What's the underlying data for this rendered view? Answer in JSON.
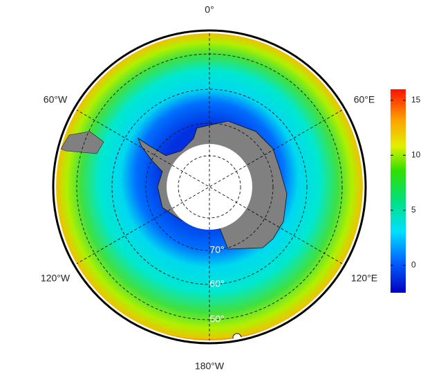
{
  "map": {
    "longitude_labels": [
      "0°",
      "60°E",
      "120°E",
      "180°W",
      "120°W",
      "60°W"
    ],
    "latitude_labels": [
      "70°",
      "60°",
      "50°"
    ]
  },
  "colorbar": {
    "range": [
      -2.5,
      16
    ],
    "ticks": [
      0,
      5,
      10,
      15
    ]
  }
}
